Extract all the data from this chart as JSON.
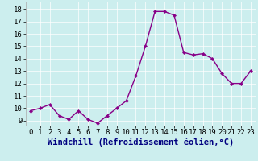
{
  "x": [
    0,
    1,
    2,
    3,
    4,
    5,
    6,
    7,
    8,
    9,
    10,
    11,
    12,
    13,
    14,
    15,
    16,
    17,
    18,
    19,
    20,
    21,
    22,
    23
  ],
  "y": [
    9.8,
    10.0,
    10.3,
    9.4,
    9.1,
    9.8,
    9.1,
    8.8,
    9.4,
    10.0,
    10.6,
    12.6,
    15.0,
    17.8,
    17.8,
    17.5,
    14.5,
    14.3,
    14.4,
    14.0,
    12.8,
    12.0,
    12.0,
    13.0
  ],
  "line_color": "#880088",
  "marker": "D",
  "marker_size": 2.2,
  "line_width": 1.0,
  "bg_color": "#cceeee",
  "grid_color": "#ffffff",
  "xlabel": "Windchill (Refroidissement éolien,°C)",
  "xlabel_fontsize": 7.5,
  "xlabel_color": "#000080",
  "tick_label_fontsize": 6.5,
  "ytick_labels": [
    9,
    10,
    11,
    12,
    13,
    14,
    15,
    16,
    17,
    18
  ],
  "ylim": [
    8.6,
    18.6
  ],
  "xlim": [
    -0.5,
    23.5
  ],
  "xtick_labels": [
    "0",
    "1",
    "2",
    "3",
    "4",
    "5",
    "6",
    "7",
    "8",
    "9",
    "10",
    "11",
    "12",
    "13",
    "14",
    "15",
    "16",
    "17",
    "18",
    "19",
    "20",
    "21",
    "22",
    "23"
  ],
  "grid_lw": 0.5
}
